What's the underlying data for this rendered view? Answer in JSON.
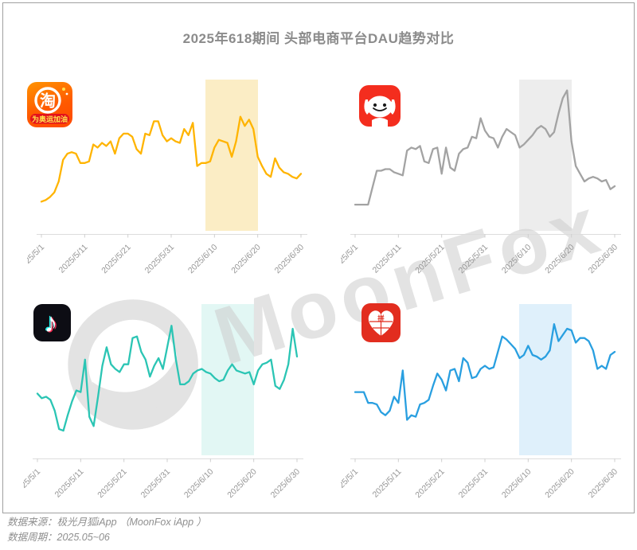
{
  "title": "2025年618期间 头部电商平台DAU趋势对比",
  "watermark_text": "MoonFox",
  "footer": {
    "source_line": "数据来源：极光月狐iApp （MoonFox iApp ）",
    "period_line": "数据周期：2025.05~06"
  },
  "chart_data": {
    "type": "line",
    "title": "2025年618期间 头部电商平台DAU趋势对比",
    "x_start": "2025/5/1",
    "x_end": "2025/6/30",
    "interval": "daily",
    "x_tick_labels": [
      "2025/5/1",
      "2025/5/11",
      "2025/5/21",
      "2025/5/31",
      "2025/6/10",
      "2025/6/20",
      "2025/6/30"
    ],
    "x_tick_days": [
      0,
      10,
      20,
      30,
      40,
      50,
      60
    ],
    "y_axis": "DAU index (unlabeled, relative 0-100 estimate)",
    "grid": "off",
    "legend": "app icon per panel",
    "highlight_band": {
      "from": "2025/6/8",
      "to": "2025/6/20",
      "from_day": 38,
      "to_day": 50
    },
    "panels": [
      {
        "platform": "淘宝",
        "icon": "taobao-icon",
        "line_color": "#FFB400",
        "band_color": "#FBEDC5",
        "values": [
          21,
          22,
          24,
          27,
          34,
          48,
          52,
          53,
          52,
          46,
          46,
          47,
          58,
          56,
          59,
          57,
          60,
          52,
          62,
          65,
          65,
          63,
          55,
          52,
          65,
          64,
          73,
          73,
          64,
          60,
          62,
          60,
          59,
          68,
          64,
          72,
          44,
          46,
          46,
          47,
          56,
          61,
          60,
          59,
          50,
          60,
          76,
          70,
          74,
          68,
          50,
          44,
          39,
          37,
          49,
          43,
          40,
          39,
          37,
          36,
          39
        ]
      },
      {
        "platform": "京东",
        "icon": "jd-icon",
        "line_color": "#a3a3a3",
        "band_color": "#ededed",
        "values": [
          19,
          19,
          19,
          19,
          30,
          41,
          41,
          42,
          42,
          40,
          39,
          38,
          54,
          56,
          55,
          57,
          47,
          46,
          55,
          56,
          39,
          56,
          43,
          41,
          52,
          55,
          56,
          63,
          62,
          75,
          67,
          63,
          62,
          56,
          63,
          68,
          66,
          64,
          56,
          58,
          61,
          64,
          68,
          70,
          68,
          63,
          66,
          78,
          88,
          93,
          60,
          44,
          39,
          34,
          36,
          37,
          36,
          34,
          35,
          29,
          31
        ]
      },
      {
        "platform": "抖音",
        "icon": "douyin-icon",
        "line_color": "#2bc5b4",
        "band_color": "#e2f7f4",
        "values": [
          42,
          39,
          40,
          38,
          31,
          19,
          18,
          28,
          37,
          44,
          43,
          64,
          27,
          21,
          40,
          60,
          72,
          61,
          58,
          56,
          61,
          61,
          78,
          79,
          69,
          64,
          53,
          60,
          65,
          58,
          72,
          86,
          64,
          48,
          48,
          50,
          55,
          57,
          58,
          56,
          55,
          52,
          50,
          51,
          57,
          61,
          57,
          56,
          55,
          56,
          48,
          57,
          61,
          62,
          64,
          47,
          45,
          51,
          61,
          84,
          66
        ]
      },
      {
        "platform": "拼多多",
        "icon": "pinduoduo-icon",
        "line_color": "#299fe0",
        "band_color": "#dff0fb",
        "values": [
          43,
          43,
          43,
          36,
          36,
          35,
          30,
          28,
          31,
          40,
          36,
          57,
          25,
          28,
          27,
          35,
          36,
          38,
          47,
          55,
          51,
          44,
          57,
          58,
          50,
          65,
          62,
          52,
          53,
          58,
          60,
          58,
          59,
          69,
          79,
          77,
          74,
          71,
          65,
          67,
          73,
          67,
          66,
          64,
          66,
          70,
          87,
          76,
          80,
          84,
          83,
          75,
          78,
          78,
          76,
          70,
          58,
          60,
          58,
          67,
          69
        ]
      }
    ]
  }
}
